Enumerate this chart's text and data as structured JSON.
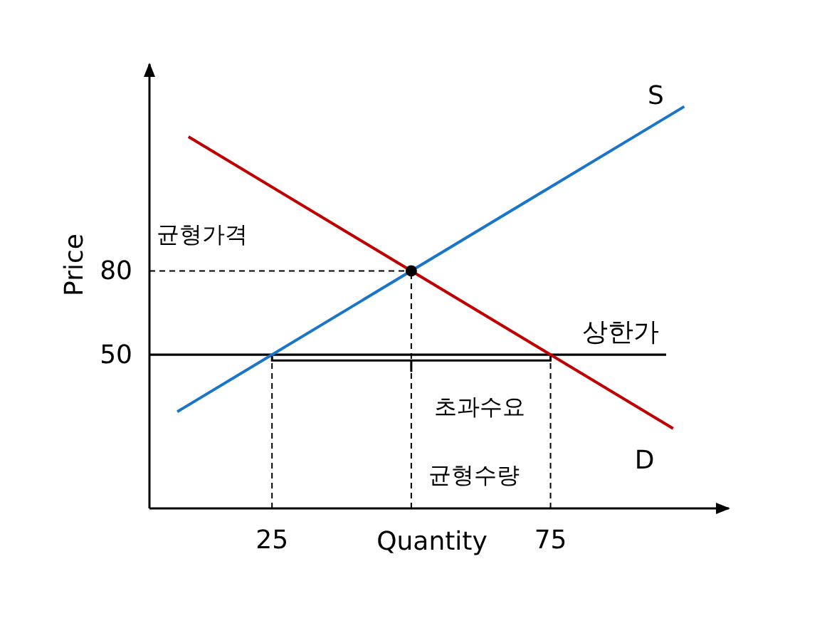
{
  "chart_data": {
    "type": "line",
    "xlabel": "Quantity",
    "ylabel": "Price",
    "xlim": [
      3,
      107
    ],
    "ylim": [
      -5,
      154
    ],
    "xticks": [
      25,
      75
    ],
    "yticks": [
      50,
      80
    ],
    "series": [
      {
        "name": "S",
        "color": "#1a75c8",
        "x": [
          8,
          99
        ],
        "values": [
          29.6,
          138.8
        ]
      },
      {
        "name": "D",
        "color": "#c00000",
        "x": [
          10,
          97
        ],
        "values": [
          128,
          23.6
        ]
      },
      {
        "type": "scatter",
        "color": "#000000",
        "x": [
          50
        ],
        "values": [
          80
        ],
        "marker": "circle"
      }
    ],
    "ref_lines": [
      {
        "axis": "y",
        "value": 50,
        "label": "상한가",
        "color": "#000000",
        "line_style": "solid"
      },
      {
        "axis": "y",
        "value": 80,
        "label": "균형가격",
        "color": "#000000",
        "line_style": "dashed"
      },
      {
        "axis": "x",
        "value": 25,
        "color": "#000000",
        "line_style": "dashed"
      },
      {
        "axis": "x",
        "value": 50,
        "label": "균형수량",
        "color": "#000000",
        "line_style": "dashed"
      },
      {
        "axis": "x",
        "value": 75,
        "color": "#000000",
        "line_style": "dashed"
      }
    ],
    "annotations": [
      {
        "text": "초과수요",
        "x": 50,
        "y": 50
      }
    ]
  }
}
